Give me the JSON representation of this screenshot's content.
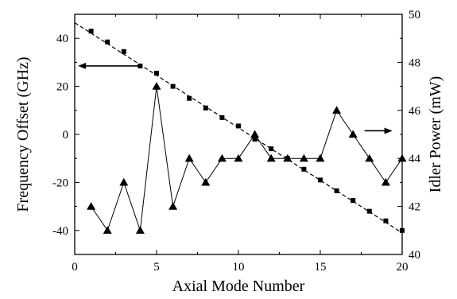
{
  "chart_data": {
    "type": "line",
    "title": "",
    "xlabel": "Axial Mode Number",
    "ylabel": "Frequency Offset (GHz)",
    "y2label": "Idler Power (mW)",
    "xlim": [
      0,
      20
    ],
    "ylim": [
      -50,
      50
    ],
    "y2lim": [
      40,
      50
    ],
    "xticks": [
      "0",
      "5",
      "10",
      "15",
      "20"
    ],
    "yticks": [
      "-40",
      "-20",
      "0",
      "20",
      "40"
    ],
    "y2ticks": [
      "40",
      "42",
      "44",
      "46",
      "48",
      "50"
    ],
    "grid": false,
    "series": [
      {
        "axis": "left",
        "marker": "square",
        "fit_line": {
          "x": [
            0,
            20
          ],
          "y": [
            46.5,
            -41.0
          ]
        },
        "x": [
          1,
          2,
          3,
          4,
          5,
          6,
          7,
          8,
          9,
          10,
          11,
          12,
          13,
          14,
          15,
          16,
          17,
          18,
          19,
          20
        ],
        "values": [
          43,
          38.5,
          34.5,
          28.5,
          25.5,
          20,
          15,
          11,
          7,
          3.5,
          -2,
          -6,
          -10,
          -14.5,
          -19,
          -23.5,
          -27.5,
          -32,
          -36,
          -40
        ]
      },
      {
        "axis": "right",
        "marker": "triangle",
        "x": [
          1,
          2,
          3,
          4,
          5,
          6,
          7,
          8,
          9,
          10,
          11,
          12,
          13,
          14,
          15,
          16,
          17,
          18,
          19,
          20
        ],
        "values": [
          42,
          41,
          43,
          41,
          47,
          42,
          44,
          43,
          44,
          44,
          45,
          44,
          44,
          44,
          44,
          46,
          45,
          44,
          43,
          44
        ]
      }
    ],
    "arrows": [
      {
        "points_to": "left",
        "x_from": 4.0,
        "x_to": 0.2,
        "y": 28.5
      },
      {
        "points_to": "right",
        "x_from": 17.7,
        "x_to": 19.4,
        "y": 1.5
      }
    ]
  }
}
